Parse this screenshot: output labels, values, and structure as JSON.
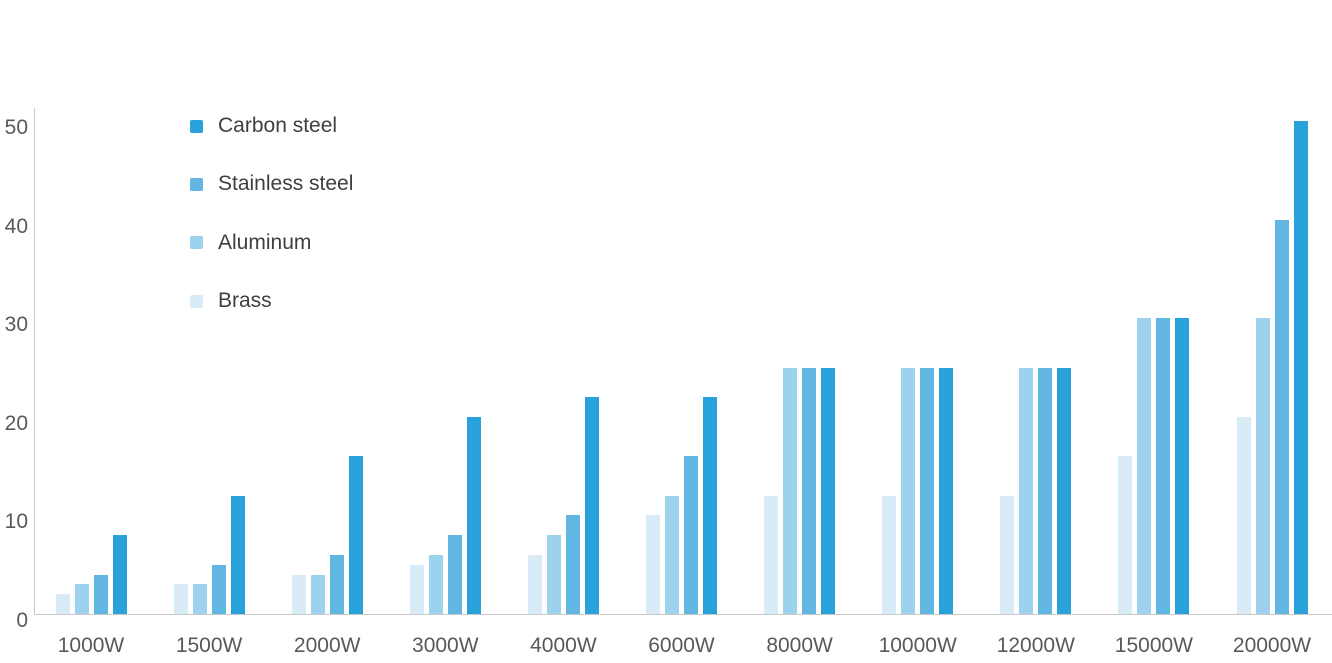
{
  "chart_data": {
    "type": "bar",
    "title": "",
    "xlabel": "",
    "ylabel": "",
    "categories": [
      "1000W",
      "1500W",
      "2000W",
      "3000W",
      "4000W",
      "6000W",
      "8000W",
      "10000W",
      "12000W",
      "15000W",
      "20000W"
    ],
    "series": [
      {
        "name": "Brass",
        "color": "#D9EBF7",
        "values": [
          2,
          3,
          4,
          5,
          6,
          10,
          12,
          12,
          12,
          16,
          20
        ]
      },
      {
        "name": "Aluminum",
        "color": "#9DD2EE",
        "values": [
          3,
          3,
          4,
          6,
          8,
          12,
          25,
          25,
          25,
          30,
          30
        ]
      },
      {
        "name": "Stainless steel",
        "color": "#62B6E2",
        "values": [
          4,
          5,
          6,
          8,
          10,
          16,
          25,
          25,
          25,
          30,
          40
        ]
      },
      {
        "name": "Carbon steel",
        "color": "#29A2DC",
        "values": [
          8,
          12,
          16,
          20,
          22,
          22,
          25,
          25,
          25,
          30,
          50
        ]
      }
    ],
    "legend": {
      "position": "top-left",
      "order": [
        "Carbon steel",
        "Stainless steel",
        "Aluminum",
        "Brass"
      ]
    },
    "y_ticks": [
      0,
      10,
      20,
      30,
      40,
      50
    ],
    "ylim": [
      0,
      51
    ],
    "grid": false,
    "axis_line_color": "#C9C9C9",
    "tick_label_color": "#595959",
    "legend_text_color": "#3F3F3F"
  }
}
